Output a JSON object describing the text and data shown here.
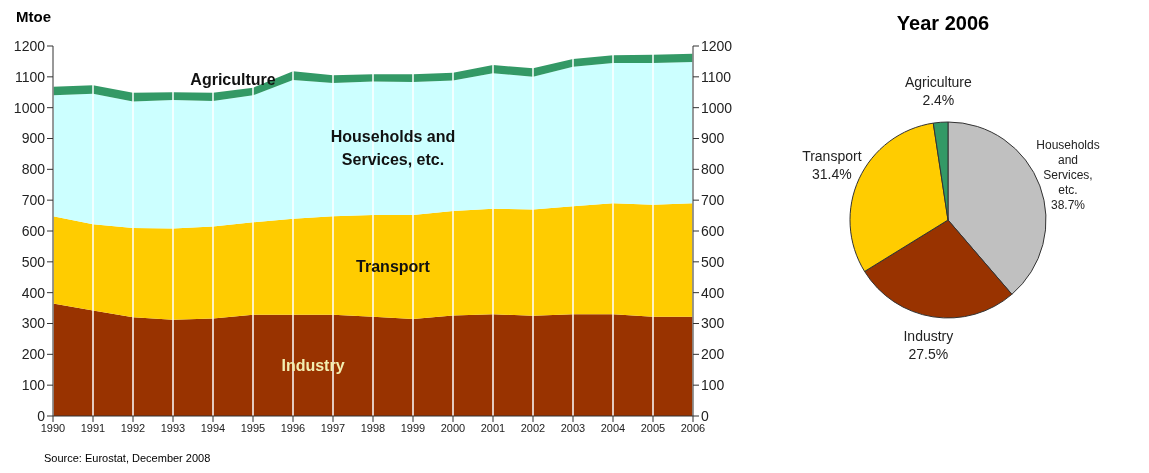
{
  "chart_data": [
    {
      "type": "area",
      "stacked": true,
      "ylabel": "Mtoe",
      "categories": [
        "1990",
        "1991",
        "1992",
        "1993",
        "1994",
        "1995",
        "1996",
        "1997",
        "1998",
        "1999",
        "2000",
        "2001",
        "2002",
        "2003",
        "2004",
        "2005",
        "2006"
      ],
      "series": [
        {
          "name": "Industry",
          "color": "#993300",
          "values": [
            365,
            342,
            320,
            312,
            316,
            328,
            328,
            328,
            322,
            315,
            326,
            330,
            325,
            330,
            330,
            322,
            322
          ]
        },
        {
          "name": "Transport",
          "color": "#ffcc00",
          "values": [
            283,
            280,
            290,
            296,
            299,
            300,
            312,
            320,
            330,
            337,
            339,
            342,
            345,
            350,
            360,
            363,
            368
          ]
        },
        {
          "name": "Households and Services, etc.",
          "color": "#ccffff",
          "values": [
            392,
            423,
            410,
            417,
            407,
            412,
            450,
            432,
            433,
            431,
            423,
            440,
            430,
            453,
            455,
            460,
            458
          ]
        },
        {
          "name": "Agriculture",
          "color": "#339966",
          "values": [
            28,
            28,
            28,
            25,
            26,
            25,
            28,
            25,
            23,
            25,
            25,
            26,
            28,
            25,
            25,
            27,
            27
          ]
        }
      ],
      "ylim": [
        0,
        1200
      ],
      "yticks": [
        0,
        100,
        200,
        300,
        400,
        500,
        600,
        700,
        800,
        900,
        1000,
        1100,
        1200
      ],
      "y2lim": [
        0,
        1200
      ],
      "y2ticks": [
        0,
        100,
        200,
        300,
        400,
        500,
        600,
        700,
        800,
        900,
        1000,
        1100,
        1200
      ],
      "grid": "x",
      "annotations": [
        "Source: Eurostat, December 2008"
      ]
    },
    {
      "type": "pie",
      "title": "Year 2006",
      "categories": [
        "Households and Services, etc.",
        "Industry",
        "Transport",
        "Agriculture"
      ],
      "values": [
        38.7,
        27.5,
        31.4,
        2.4
      ],
      "value_labels": [
        "38.7%",
        "27.5%",
        "31.4%",
        "2.4%"
      ],
      "colors": [
        "#c0c0c0",
        "#993300",
        "#ffcc00",
        "#339966"
      ]
    }
  ]
}
